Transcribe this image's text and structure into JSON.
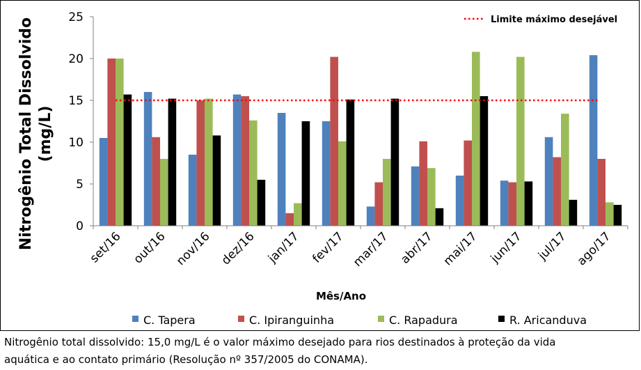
{
  "chart_data": {
    "type": "bar",
    "categories": [
      "set/16",
      "out/16",
      "nov/16",
      "dez/16",
      "jan/17",
      "fev/17",
      "mar/17",
      "abr/17",
      "mai/17",
      "jun/17",
      "jul/17",
      "ago/17"
    ],
    "series": [
      {
        "name": "C. Tapera",
        "color": "#4f81bd",
        "values": [
          10.5,
          16.0,
          8.5,
          15.7,
          13.5,
          12.5,
          2.3,
          7.1,
          6.0,
          5.4,
          10.6,
          20.4
        ]
      },
      {
        "name": "C. Ipiranguinha",
        "color": "#c0504d",
        "values": [
          20.0,
          10.6,
          15.0,
          15.5,
          1.5,
          20.2,
          5.2,
          10.1,
          10.2,
          5.2,
          8.2,
          8.0
        ]
      },
      {
        "name": "C. Rapadura",
        "color": "#9bbb59",
        "values": [
          20.0,
          8.0,
          15.2,
          12.6,
          2.7,
          10.1,
          8.0,
          6.9,
          20.8,
          20.2,
          13.4,
          2.8
        ]
      },
      {
        "name": "R. Aricanduva",
        "color": "#000000",
        "values": [
          15.7,
          15.2,
          10.8,
          5.5,
          12.5,
          15.1,
          15.2,
          2.1,
          15.5,
          5.3,
          3.1,
          2.5
        ]
      }
    ],
    "yticks": [
      "0",
      "5",
      "10",
      "15",
      "20",
      "25"
    ],
    "ylim": [
      0,
      25
    ],
    "ylabel_line1": "Nitrogênio Total Dissolvido",
    "ylabel_line2": "(mg/L)",
    "xlabel": "Mês/Ano",
    "reference_line": {
      "value": 15,
      "label": "Limite máximo desejável",
      "color": "#ff0000"
    },
    "legend_position": "bottom",
    "grid": false
  },
  "caption": {
    "line1": "Nitrogênio total dissolvido: 15,0 mg/L é o valor máximo desejado para rios destinados à proteção da vida",
    "line2": "aquática e ao contato primário (Resolução nº 357/2005 do CONAMA)."
  }
}
